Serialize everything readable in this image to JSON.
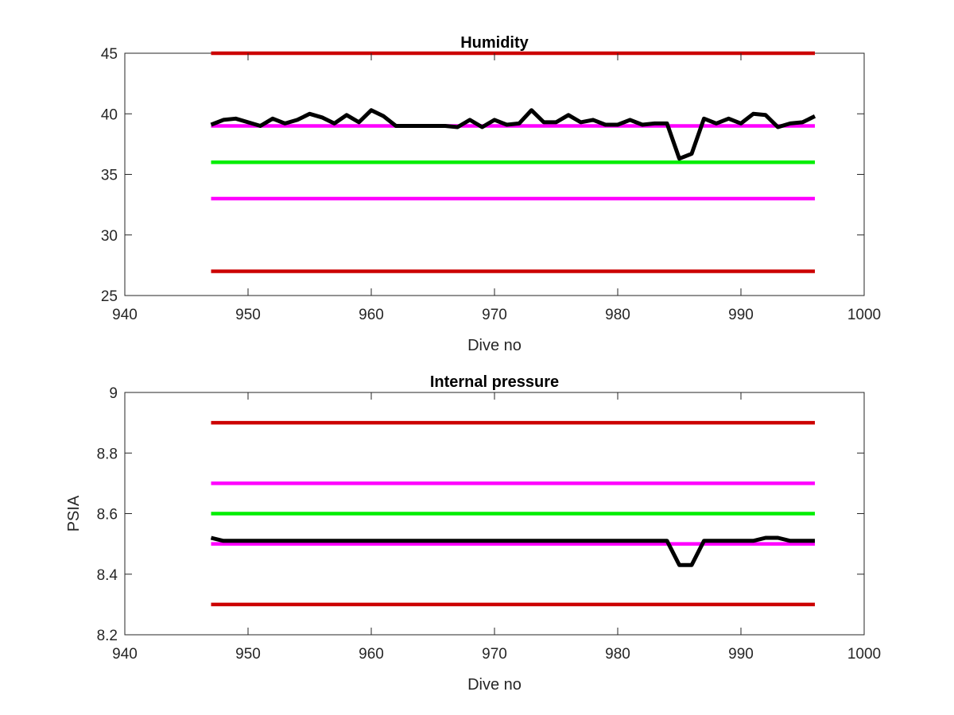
{
  "chart_data": [
    {
      "type": "line",
      "title": "Humidity",
      "xlabel": "Dive no",
      "ylabel": "",
      "xlim": [
        940,
        1000
      ],
      "ylim": [
        25,
        45
      ],
      "xticks": [
        940,
        950,
        960,
        970,
        980,
        990,
        1000
      ],
      "yticks": [
        25,
        30,
        35,
        40,
        45
      ],
      "grid": false,
      "series": [
        {
          "color": "#cc0000",
          "x": [
            947,
            996
          ],
          "y": [
            45,
            45
          ]
        },
        {
          "color": "#cc0000",
          "x": [
            947,
            996
          ],
          "y": [
            27,
            27
          ]
        },
        {
          "color": "#ff00ff",
          "x": [
            947,
            996
          ],
          "y": [
            33,
            33
          ]
        },
        {
          "color": "#00ee00",
          "x": [
            947,
            996
          ],
          "y": [
            36,
            36
          ]
        },
        {
          "color": "#ff00ff",
          "x": [
            947,
            996
          ],
          "y": [
            39,
            39
          ]
        },
        {
          "color": "#000000",
          "x": [
            947,
            948,
            949,
            950,
            951,
            952,
            953,
            954,
            955,
            956,
            957,
            958,
            959,
            960,
            961,
            962,
            963,
            964,
            965,
            966,
            967,
            968,
            969,
            970,
            971,
            972,
            973,
            974,
            975,
            976,
            977,
            978,
            979,
            980,
            981,
            982,
            983,
            984,
            985,
            986,
            987,
            988,
            989,
            990,
            991,
            992,
            993,
            994,
            995,
            996
          ],
          "y": [
            39.1,
            39.5,
            39.6,
            39.3,
            39.0,
            39.6,
            39.2,
            39.5,
            40.0,
            39.7,
            39.2,
            39.9,
            39.3,
            40.3,
            39.8,
            39.0,
            39.0,
            39.0,
            39.0,
            39.0,
            38.9,
            39.5,
            38.9,
            39.5,
            39.1,
            39.2,
            40.3,
            39.3,
            39.3,
            39.9,
            39.3,
            39.5,
            39.1,
            39.1,
            39.5,
            39.1,
            39.2,
            39.2,
            36.3,
            36.7,
            39.6,
            39.2,
            39.6,
            39.2,
            40.0,
            39.9,
            38.9,
            39.2,
            39.3,
            39.8
          ]
        }
      ]
    },
    {
      "type": "line",
      "title": "Internal pressure",
      "xlabel": "Dive no",
      "ylabel": "PSIA",
      "xlim": [
        940,
        1000
      ],
      "ylim": [
        8.2,
        9
      ],
      "xticks": [
        940,
        950,
        960,
        970,
        980,
        990,
        1000
      ],
      "yticks": [
        8.2,
        8.4,
        8.6,
        8.8,
        9
      ],
      "grid": false,
      "series": [
        {
          "color": "#cc0000",
          "x": [
            947,
            996
          ],
          "y": [
            8.9,
            8.9
          ]
        },
        {
          "color": "#cc0000",
          "x": [
            947,
            996
          ],
          "y": [
            8.3,
            8.3
          ]
        },
        {
          "color": "#ff00ff",
          "x": [
            947,
            996
          ],
          "y": [
            8.7,
            8.7
          ]
        },
        {
          "color": "#00ee00",
          "x": [
            947,
            996
          ],
          "y": [
            8.6,
            8.6
          ]
        },
        {
          "color": "#ff00ff",
          "x": [
            947,
            996
          ],
          "y": [
            8.5,
            8.5
          ]
        },
        {
          "color": "#000000",
          "x": [
            947,
            948,
            949,
            950,
            951,
            952,
            953,
            954,
            955,
            956,
            957,
            958,
            959,
            960,
            961,
            962,
            963,
            964,
            965,
            966,
            967,
            968,
            969,
            970,
            971,
            972,
            973,
            974,
            975,
            976,
            977,
            978,
            979,
            980,
            981,
            982,
            983,
            984,
            985,
            986,
            987,
            988,
            989,
            990,
            991,
            992,
            993,
            994,
            995,
            996
          ],
          "y": [
            8.52,
            8.51,
            8.51,
            8.51,
            8.51,
            8.51,
            8.51,
            8.51,
            8.51,
            8.51,
            8.51,
            8.51,
            8.51,
            8.51,
            8.51,
            8.51,
            8.51,
            8.51,
            8.51,
            8.51,
            8.51,
            8.51,
            8.51,
            8.51,
            8.51,
            8.51,
            8.51,
            8.51,
            8.51,
            8.51,
            8.51,
            8.51,
            8.51,
            8.51,
            8.51,
            8.51,
            8.51,
            8.51,
            8.43,
            8.43,
            8.51,
            8.51,
            8.51,
            8.51,
            8.51,
            8.52,
            8.52,
            8.51,
            8.51,
            8.51
          ]
        }
      ]
    }
  ]
}
